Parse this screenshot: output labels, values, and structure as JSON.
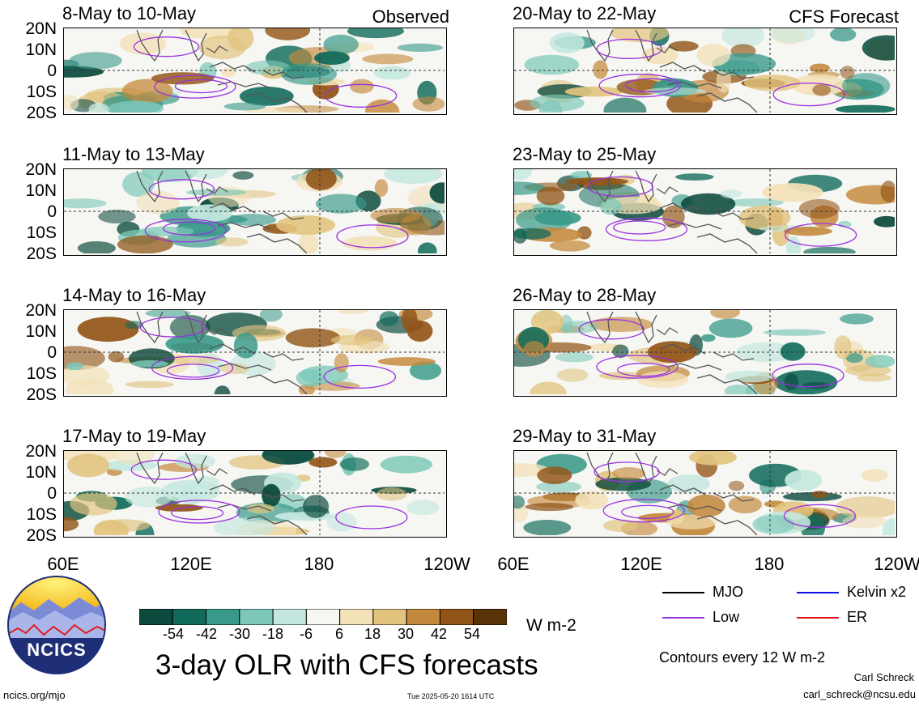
{
  "panels_left": [
    {
      "title": "8-May to 10-May",
      "tag": "Observed"
    },
    {
      "title": "11-May to 13-May",
      "tag": ""
    },
    {
      "title": "14-May to 16-May",
      "tag": ""
    },
    {
      "title": "17-May to 19-May",
      "tag": ""
    }
  ],
  "panels_right": [
    {
      "title": "20-May to 22-May",
      "tag": "CFS Forecast"
    },
    {
      "title": "23-May to 25-May",
      "tag": ""
    },
    {
      "title": "26-May to 28-May",
      "tag": ""
    },
    {
      "title": "29-May to 31-May",
      "tag": ""
    }
  ],
  "lat_labels": [
    "20N",
    "10N",
    "0",
    "10S",
    "20S"
  ],
  "lon_labels": [
    "60E",
    "120E",
    "180",
    "120W"
  ],
  "colorbar": {
    "colors": [
      "#0b4a3c",
      "#116b5b",
      "#3a9a8a",
      "#7cc8b8",
      "#c4e8df",
      "#f6f6f3",
      "#f3e1b8",
      "#e2c47f",
      "#c4893c",
      "#925518",
      "#5a3409"
    ],
    "labels": [
      "-54",
      "-42",
      "-30",
      "-18",
      "-6",
      "6",
      "18",
      "30",
      "42",
      "54"
    ],
    "units": "W m-2"
  },
  "legend": {
    "items": [
      {
        "label": "MJO",
        "color": "#000000"
      },
      {
        "label": "Kelvin x2",
        "color": "#1010e6"
      },
      {
        "label": "Low",
        "color": "#9b30e0"
      },
      {
        "label": "ER",
        "color": "#e01010"
      }
    ],
    "contour_note": "Contours every 12 W m-2"
  },
  "logo": {
    "text": "NCICS"
  },
  "main_title": "3-day OLR with CFS forecasts",
  "footer": {
    "left": "ncics.org/mjo",
    "center": "Tue 2025-05-20 1614 UTC",
    "author": "Carl Schreck",
    "email": "carl_schreck@ncsu.edu"
  },
  "chart_data": {
    "type": "heatmap",
    "variable": "3-day OLR",
    "units": "W m-2",
    "x_range": [
      "60E",
      "120W"
    ],
    "y_range": [
      "20S",
      "20N"
    ],
    "x_ticks": [
      "60E",
      "120E",
      "180",
      "120W"
    ],
    "y_ticks": [
      "20N",
      "10N",
      "0",
      "10S",
      "20S"
    ],
    "contour_levels": [
      -54,
      -42,
      -30,
      -18,
      -6,
      6,
      18,
      30,
      42,
      54
    ],
    "contour_interval": 12,
    "series": [
      {
        "name": "MJO",
        "color": "#000000"
      },
      {
        "name": "Kelvin x2",
        "color": "#1010e6"
      },
      {
        "name": "Low",
        "color": "#9b30e0"
      },
      {
        "name": "ER",
        "color": "#e01010"
      }
    ]
  }
}
